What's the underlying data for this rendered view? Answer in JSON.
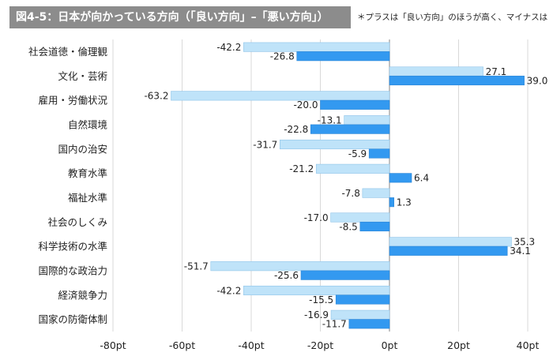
{
  "header": {
    "title": "図4-5：日本が向かっている方向（「良い方向」–「悪い方向」）",
    "note": "＊プラスは「良い方向」のほうが高く、マイナスは"
  },
  "colors": {
    "series1": "#bfe3f9",
    "series2": "#3399f0",
    "grid": "#d9d9d9",
    "axis": "#9a9a9a"
  },
  "chart_data": {
    "type": "bar",
    "orientation": "horizontal",
    "categories": [
      "社会道徳・倫理観",
      "文化・芸術",
      "雇用・労働状況",
      "自然環境",
      "国内の治安",
      "教育水準",
      "福祉水準",
      "社会のしくみ",
      "科学技術の水準",
      "国際的な政治力",
      "経済競争力",
      "国家の防衛体制"
    ],
    "series": [
      {
        "name": "series-1",
        "values": [
          -42.2,
          27.1,
          -63.2,
          -13.1,
          -31.7,
          -21.2,
          -7.8,
          -17.0,
          35.3,
          -51.7,
          -42.2,
          -16.9
        ]
      },
      {
        "name": "series-2",
        "values": [
          -26.8,
          39.0,
          -20.0,
          -22.8,
          -5.9,
          6.4,
          1.3,
          -8.5,
          34.1,
          -25.6,
          -15.5,
          -11.7
        ]
      }
    ],
    "xlim": [
      -80,
      40
    ],
    "xticks": [
      -80,
      -60,
      -40,
      -20,
      0,
      20,
      40
    ],
    "tick_suffix": "pt",
    "grid": true,
    "legend": "none"
  }
}
